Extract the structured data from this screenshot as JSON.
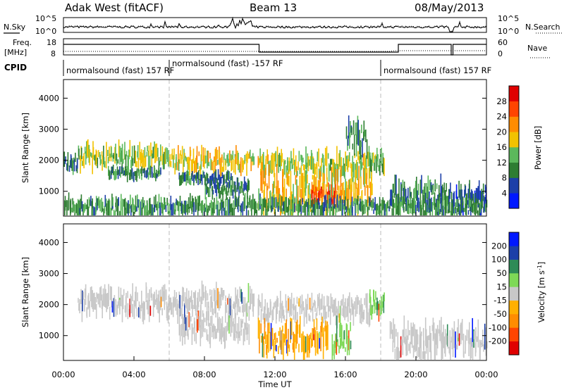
{
  "header": {
    "station": "Adak West (fitACF)",
    "beam": "Beam 13",
    "date": "08/May/2013"
  },
  "panel_labels": {
    "nsky": "N.Sky",
    "nsearch": "N.Search",
    "freq": "Freq.",
    "freq_unit": "[MHz]",
    "nave": "Nave",
    "cpid": "CPID"
  },
  "noise_ticks": {
    "top": "10^5",
    "bottom": "10^0"
  },
  "freq_ticks": {
    "left": [
      "18",
      "8"
    ],
    "right": [
      "60",
      "0"
    ]
  },
  "cpid_segments": [
    {
      "label": "normalsound (fast) 157 RF",
      "start_hour": 0
    },
    {
      "label": "normalsound (fast) -157 RF",
      "start_hour": 6
    },
    {
      "label": "normalsound (fast) 157 RF",
      "start_hour": 18
    }
  ],
  "colors": {
    "power_scale": [
      "#0018ff",
      "#1c3fa8",
      "#2e7d32",
      "#5cb85c",
      "#f2c200",
      "#ff8c00",
      "#ff4500",
      "#e00000"
    ],
    "velocity_scale": [
      "#e00000",
      "#ff4500",
      "#ff8c00",
      "#ffb000",
      "#c8c8c8",
      "#7ed957",
      "#2e8b57",
      "#1c3fa8",
      "#0018ff"
    ],
    "ground_scatter": "#c8c8c8"
  },
  "chart_data": [
    {
      "type": "heatmap",
      "name": "power",
      "ylabel": "Slant Range [km]",
      "yticks": [
        1000,
        2000,
        3000,
        4000
      ],
      "ylim": [
        200,
        4600
      ],
      "xlim_hours": [
        0,
        24
      ],
      "colorbar": {
        "label": "Power [dB]",
        "ticks": [
          "4",
          "8",
          "12",
          "16",
          "20",
          "24",
          "28"
        ],
        "range": [
          0,
          30
        ]
      },
      "scatter_bands": [
        {
          "t0": 0.0,
          "t1": 0.8,
          "r0": 1700,
          "r1": 2100,
          "level": 8
        },
        {
          "t0": 0.8,
          "t1": 6.0,
          "r0": 1850,
          "r1": 2400,
          "level": 14
        },
        {
          "t0": 6.0,
          "t1": 10.8,
          "r0": 1700,
          "r1": 2250,
          "level": 16
        },
        {
          "t0": 2.5,
          "t1": 5.5,
          "r0": 1450,
          "r1": 1700,
          "level": 9
        },
        {
          "t0": 6.5,
          "t1": 9.5,
          "r0": 1300,
          "r1": 1550,
          "level": 8
        },
        {
          "t0": 8.0,
          "t1": 10.5,
          "r0": 900,
          "r1": 1300,
          "level": 9
        },
        {
          "t0": 11.0,
          "t1": 17.5,
          "r0": 1550,
          "r1": 2150,
          "level": 15
        },
        {
          "t0": 11.0,
          "t1": 17.5,
          "r0": 500,
          "r1": 1500,
          "level": 18
        },
        {
          "t0": 14.0,
          "t1": 15.5,
          "r0": 600,
          "r1": 1100,
          "level": 24
        },
        {
          "t0": 16.0,
          "t1": 17.2,
          "r0": 2300,
          "r1": 3100,
          "level": 10
        },
        {
          "t0": 17.3,
          "t1": 18.2,
          "r0": 1700,
          "r1": 2200,
          "level": 12
        },
        {
          "t0": 18.5,
          "t1": 22.0,
          "r0": 500,
          "r1": 1250,
          "level": 9
        },
        {
          "t0": 22.0,
          "t1": 24.0,
          "r0": 350,
          "r1": 1100,
          "level": 6
        },
        {
          "t0": 0.0,
          "t1": 24.0,
          "r0": 250,
          "r1": 700,
          "level": 10
        }
      ]
    },
    {
      "type": "heatmap",
      "name": "velocity",
      "ylabel": "Slant Range [km]",
      "xlabel": "Time UT",
      "xticks": [
        "00:00",
        "04:00",
        "08:00",
        "12:00",
        "16:00",
        "20:00",
        "00:00"
      ],
      "yticks": [
        1000,
        2000,
        3000,
        4000
      ],
      "ylim": [
        200,
        4600
      ],
      "xlim_hours": [
        0,
        24
      ],
      "colorbar": {
        "label": "Velocity [m s^-1]",
        "ticks": [
          "200",
          "100",
          "50",
          "15",
          "-15",
          "-50",
          "-100",
          "-200"
        ],
        "range": [
          -250,
          250
        ]
      },
      "scatter_bands": [
        {
          "t0": 0.8,
          "t1": 10.8,
          "r0": 1700,
          "r1": 2400,
          "v": 0
        },
        {
          "t0": 6.5,
          "t1": 10.5,
          "r0": 900,
          "r1": 1550,
          "v": 0
        },
        {
          "t0": 11.0,
          "t1": 17.5,
          "r0": 1550,
          "r1": 2150,
          "v": 0
        },
        {
          "t0": 11.0,
          "t1": 13.8,
          "r0": 500,
          "r1": 1300,
          "v": -40
        },
        {
          "t0": 13.8,
          "t1": 15.0,
          "r0": 600,
          "r1": 1400,
          "v": -40
        },
        {
          "t0": 15.2,
          "t1": 16.3,
          "r0": 500,
          "r1": 1300,
          "v": 35
        },
        {
          "t0": 17.3,
          "t1": 18.2,
          "r0": 1700,
          "r1": 2300,
          "v": 35
        },
        {
          "t0": 18.5,
          "t1": 24.0,
          "r0": 350,
          "r1": 1250,
          "v": 0
        }
      ]
    }
  ]
}
